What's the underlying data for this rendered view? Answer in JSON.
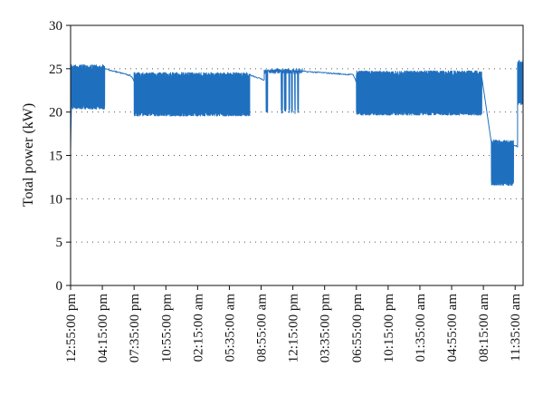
{
  "chart_data": {
    "type": "line",
    "ylabel": "Total power (kW)",
    "xlabel": "",
    "title": "",
    "ylim": [
      0,
      30
    ],
    "yticks": [
      0,
      5,
      10,
      15,
      20,
      25,
      30
    ],
    "grid": "horizontal dotted",
    "line_color": "#1f6fbf",
    "x_tick_labels": [
      "12:55:00 pm",
      "04:15:00 pm",
      "07:35:00 pm",
      "10:55:00 pm",
      "02:15:00 am",
      "05:35:00 am",
      "08:55:00 am",
      "12:15:00 pm",
      "03:35:00 pm",
      "06:55:00 pm",
      "10:15:00 pm",
      "01:35:00 am",
      "04:55:00 am",
      "08:15:00 am",
      "11:35:00 am"
    ],
    "x_tick_minutes": [
      0,
      200,
      400,
      600,
      800,
      1000,
      1200,
      1400,
      1600,
      1800,
      2000,
      2200,
      2400,
      2600,
      2800
    ],
    "x_range_minutes": [
      0,
      2850
    ],
    "segments": [
      {
        "start": 0,
        "end": 5,
        "kind": "ramp",
        "from": 15.5,
        "to": 20.5
      },
      {
        "start": 5,
        "end": 215,
        "kind": "band",
        "low": 20.3,
        "high": 25.5
      },
      {
        "start": 215,
        "end": 378,
        "kind": "flat",
        "from": 25.0,
        "to": 24.2
      },
      {
        "start": 378,
        "end": 400,
        "kind": "flat",
        "from": 24.2,
        "to": 23.6
      },
      {
        "start": 400,
        "end": 1128,
        "kind": "band",
        "low": 19.5,
        "high": 24.6
      },
      {
        "start": 1128,
        "end": 1220,
        "kind": "flat",
        "from": 24.3,
        "to": 23.7
      },
      {
        "start": 1220,
        "end": 1460,
        "kind": "sparse",
        "low": 19.8,
        "high": 25.0
      },
      {
        "start": 1460,
        "end": 1780,
        "kind": "flat",
        "from": 24.7,
        "to": 24.3
      },
      {
        "start": 1780,
        "end": 1800,
        "kind": "flat",
        "from": 24.3,
        "to": 23.5
      },
      {
        "start": 1800,
        "end": 2590,
        "kind": "band",
        "low": 19.6,
        "high": 24.8
      },
      {
        "start": 2590,
        "end": 2650,
        "kind": "ramp",
        "from": 24.0,
        "to": 16.5
      },
      {
        "start": 2650,
        "end": 2790,
        "kind": "band",
        "low": 11.5,
        "high": 16.8
      },
      {
        "start": 2790,
        "end": 2815,
        "kind": "flat",
        "from": 16.2,
        "to": 16.0
      },
      {
        "start": 2815,
        "end": 2850,
        "kind": "band",
        "low": 20.8,
        "high": 26.0
      }
    ]
  }
}
